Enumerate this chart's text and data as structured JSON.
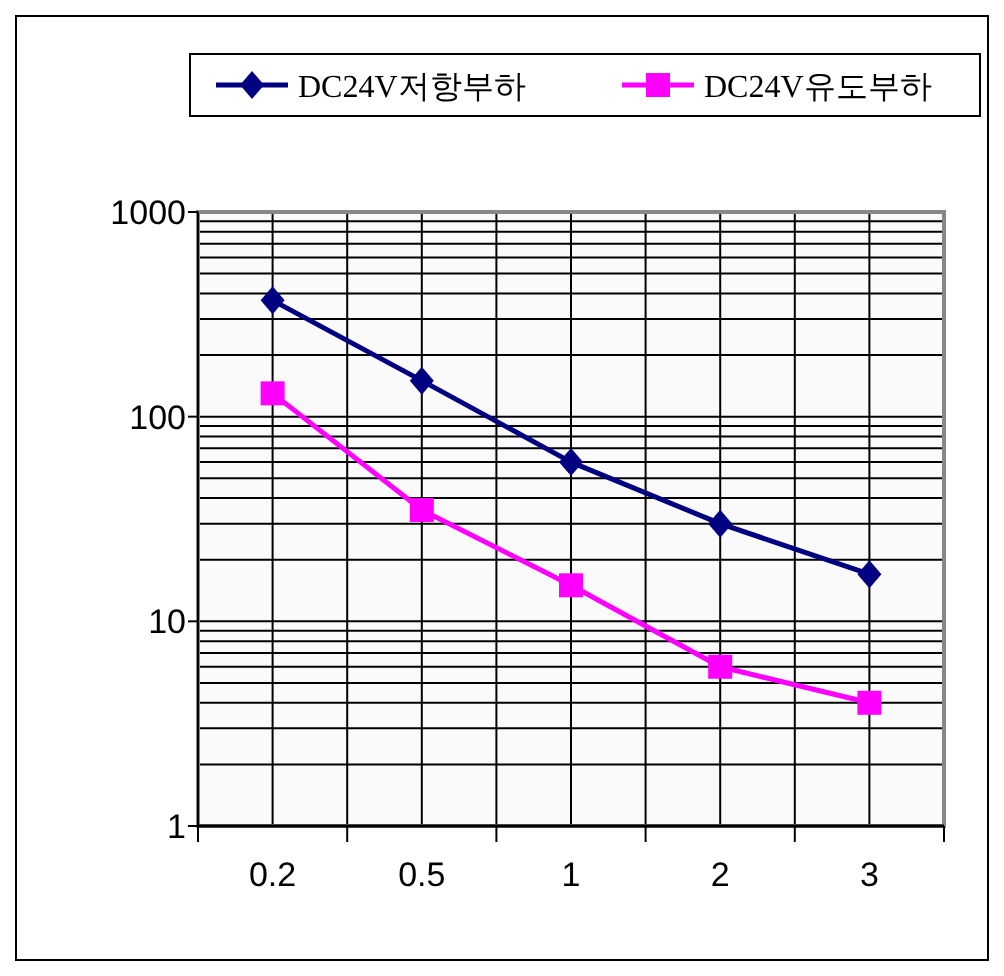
{
  "chart_data": {
    "type": "line",
    "categories": [
      "0.2",
      "0.5",
      "1",
      "2",
      "3"
    ],
    "series": [
      {
        "name": "DC24V저항부하",
        "color": "#000080",
        "marker": "diamond",
        "values": [
          370,
          150,
          60,
          30,
          17
        ]
      },
      {
        "name": "DC24V유도부하",
        "color": "#ff00ff",
        "marker": "square",
        "values": [
          130,
          35,
          15,
          6,
          4
        ]
      }
    ],
    "log": "y",
    "ylim": [
      1,
      1000
    ],
    "yticks": [
      1,
      10,
      100,
      1000
    ],
    "grid": true,
    "legend": "top"
  }
}
